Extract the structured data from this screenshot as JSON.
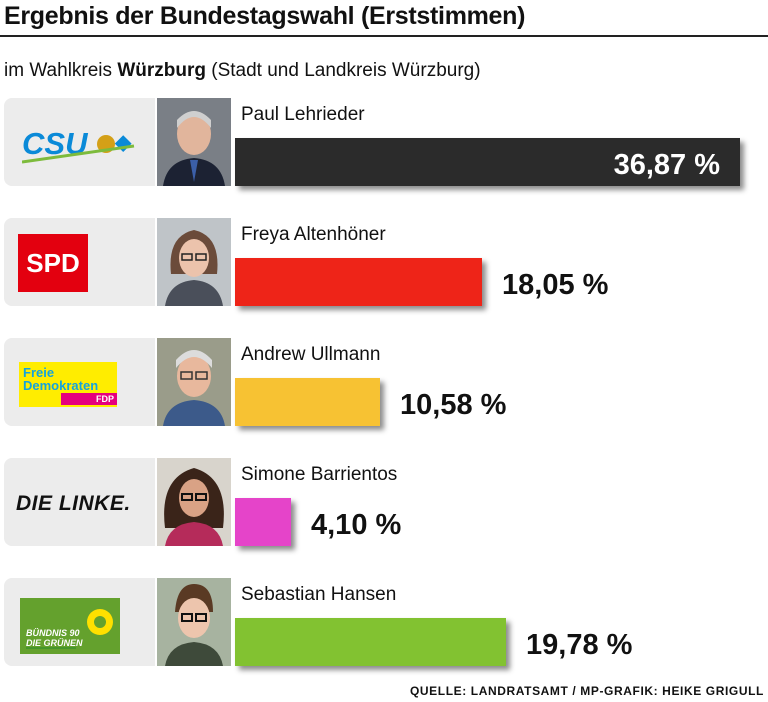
{
  "header": {
    "title": "Ergebnis der Bundestagswahl (Erststimmen)",
    "subtitle_prefix": "im Wahlkreis",
    "subtitle_bold": "Würzburg",
    "subtitle_suffix": "(Stadt und Landkreis Würzburg)"
  },
  "source": "QUELLE: LANDRATSAMT / MP-GRAFIK: HEIKE GRIGULL",
  "logos": {
    "csu": "CSU",
    "spd": "SPD",
    "fdp_line1": "Freie",
    "fdp_line2": "Demokraten",
    "fdp_tag": "FDP",
    "linke": "DIE LINKE.",
    "gruene_line1": "BÜNDNIS 90",
    "gruene_line2": "DIE GRÜNEN"
  },
  "chart_data": {
    "type": "bar",
    "orientation": "horizontal",
    "title": "Ergebnis der Bundestagswahl (Erststimmen)",
    "subtitle": "im Wahlkreis Würzburg (Stadt und Landkreis Würzburg)",
    "unit": "%",
    "categories": [
      "Paul Lehrieder",
      "Freya Altenhöner",
      "Andrew Ullmann",
      "Simone Barrientos",
      "Sebastian Hansen"
    ],
    "parties": [
      "CSU",
      "SPD",
      "FDP",
      "DIE LINKE.",
      "BÜNDNIS 90 DIE GRÜNEN"
    ],
    "values": [
      36.87,
      18.05,
      10.58,
      4.1,
      19.78
    ],
    "labels": [
      "36,87 %",
      "18,05 %",
      "10,58 %",
      "4,10 %",
      "19,78 %"
    ],
    "colors": [
      "#2b2b2b",
      "#ee2418",
      "#f7c233",
      "#e544c9",
      "#82c231"
    ],
    "grid": false,
    "legend": "none"
  }
}
